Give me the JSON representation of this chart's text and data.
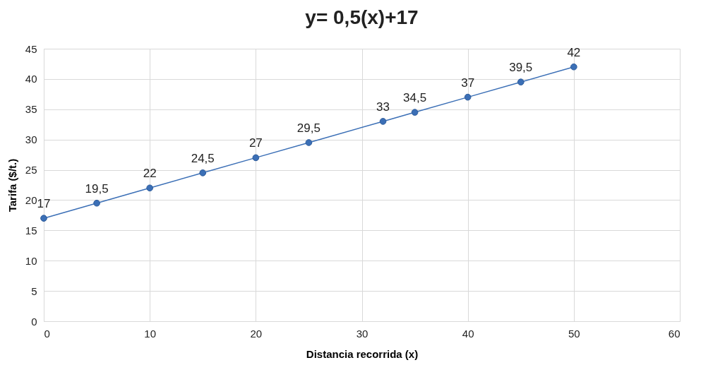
{
  "chart_data": {
    "type": "line",
    "title": "y= 0,5(x)+17",
    "xlabel": "Distancia recorrida (x)",
    "ylabel": "Tarifa ($/t.)",
    "x": [
      0,
      5,
      10,
      15,
      20,
      25,
      32,
      35,
      40,
      45,
      50
    ],
    "series": [
      {
        "color": "#3b6fb6",
        "values": [
          17,
          19.5,
          22,
          24.5,
          27,
          29.5,
          33,
          34.5,
          37,
          39.5,
          42
        ],
        "value_labels": [
          "17",
          "19,5",
          "22",
          "24,5",
          "27",
          "29,5",
          "33",
          "34,5",
          "37",
          "39,5",
          "42"
        ]
      }
    ],
    "xlim": [
      0,
      60
    ],
    "xticks": [
      0,
      10,
      20,
      30,
      40,
      50,
      60
    ],
    "ylim": [
      0,
      45
    ],
    "yticks": [
      0,
      5,
      10,
      15,
      20,
      25,
      30,
      35,
      40,
      45
    ],
    "grid": true,
    "marker": "circle",
    "line_style": "solid"
  }
}
